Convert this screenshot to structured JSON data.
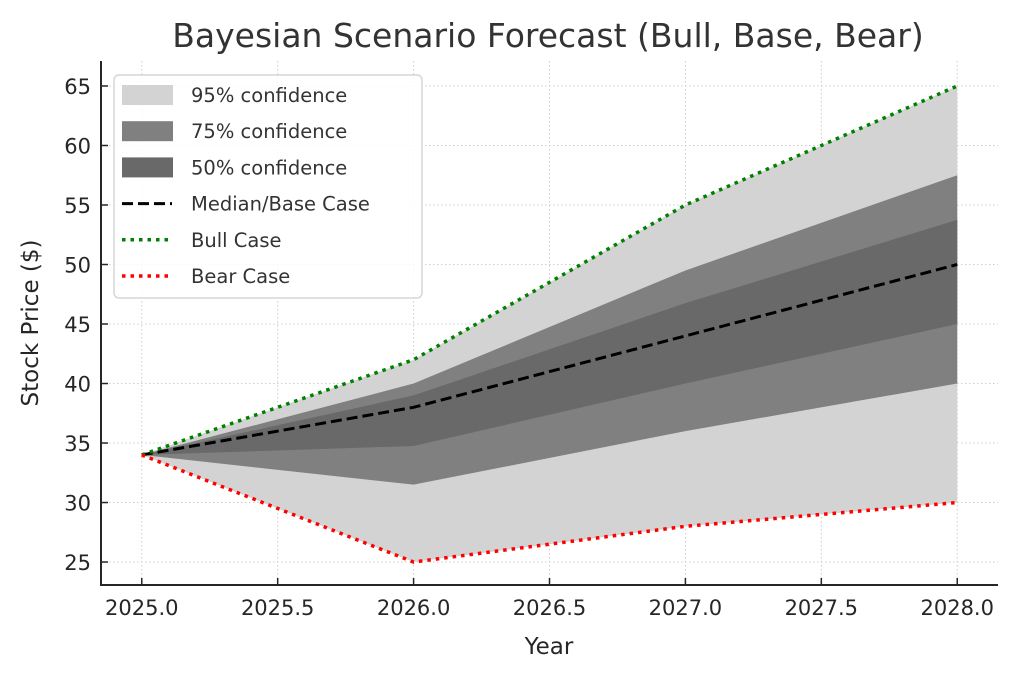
{
  "chart_data": {
    "type": "area",
    "title": "Bayesian Scenario Forecast (Bull, Base, Bear)",
    "xlabel": "Year",
    "ylabel": "Stock Price ($)",
    "xlim": [
      2024.85,
      2028.15
    ],
    "ylim": [
      23.07,
      67.1
    ],
    "xticks": [
      2025.0,
      2025.5,
      2026.0,
      2026.5,
      2027.0,
      2027.5,
      2028.0
    ],
    "xtick_labels": [
      "2025.0",
      "2025.5",
      "2026.0",
      "2026.5",
      "2027.0",
      "2027.5",
      "2028.0"
    ],
    "yticks": [
      25,
      30,
      35,
      40,
      45,
      50,
      55,
      60,
      65
    ],
    "ytick_labels": [
      "25",
      "30",
      "35",
      "40",
      "45",
      "50",
      "55",
      "60",
      "65"
    ],
    "grid": true,
    "legend_position": "top-left",
    "x": [
      2025,
      2026,
      2027,
      2028
    ],
    "bands": [
      {
        "name": "95% confidence",
        "color": "#d3d3d3",
        "lower": [
          34,
          25,
          28,
          30
        ],
        "upper": [
          34,
          42,
          55,
          65
        ]
      },
      {
        "name": "75% confidence",
        "color": "#808080",
        "lower": [
          34,
          31.5,
          36,
          40
        ],
        "upper": [
          34,
          40,
          49.5,
          57.5
        ]
      },
      {
        "name": "50% confidence",
        "color": "#696969",
        "lower": [
          34,
          34.75,
          40,
          45
        ],
        "upper": [
          34,
          39,
          46.75,
          53.75
        ]
      }
    ],
    "series": [
      {
        "name": "Median/Base Case",
        "color": "#000000",
        "style": "dashed",
        "values": [
          34,
          38,
          44,
          50
        ]
      },
      {
        "name": "Bull Case",
        "color": "#008000",
        "style": "dotted",
        "values": [
          34,
          42,
          55,
          65
        ]
      },
      {
        "name": "Bear Case",
        "color": "#ff0000",
        "style": "dotted",
        "values": [
          34,
          25,
          28,
          30
        ]
      }
    ],
    "legend": [
      {
        "label": "95% confidence",
        "kind": "patch",
        "color": "#d3d3d3"
      },
      {
        "label": "75% confidence",
        "kind": "patch",
        "color": "#808080"
      },
      {
        "label": "50% confidence",
        "kind": "patch",
        "color": "#696969"
      },
      {
        "label": "Median/Base Case",
        "kind": "dashed",
        "color": "#000000"
      },
      {
        "label": "Bull Case",
        "kind": "dotted",
        "color": "#008000"
      },
      {
        "label": "Bear Case",
        "kind": "dotted",
        "color": "#ff0000"
      }
    ]
  }
}
